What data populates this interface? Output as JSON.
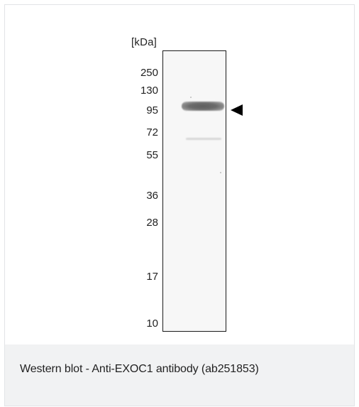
{
  "figure": {
    "unit_label": "[kDa]",
    "markers": [
      {
        "label": "250"
      },
      {
        "label": "130"
      },
      {
        "label": "95"
      },
      {
        "label": "72"
      },
      {
        "label": "55"
      },
      {
        "label": "36"
      },
      {
        "label": "28"
      },
      {
        "label": "17"
      },
      {
        "label": "10"
      }
    ],
    "band_indicator_icon": "left-pointing-triangle-icon"
  },
  "caption": {
    "text": "Western blot - Anti-EXOC1 antibody (ab251853)"
  }
}
